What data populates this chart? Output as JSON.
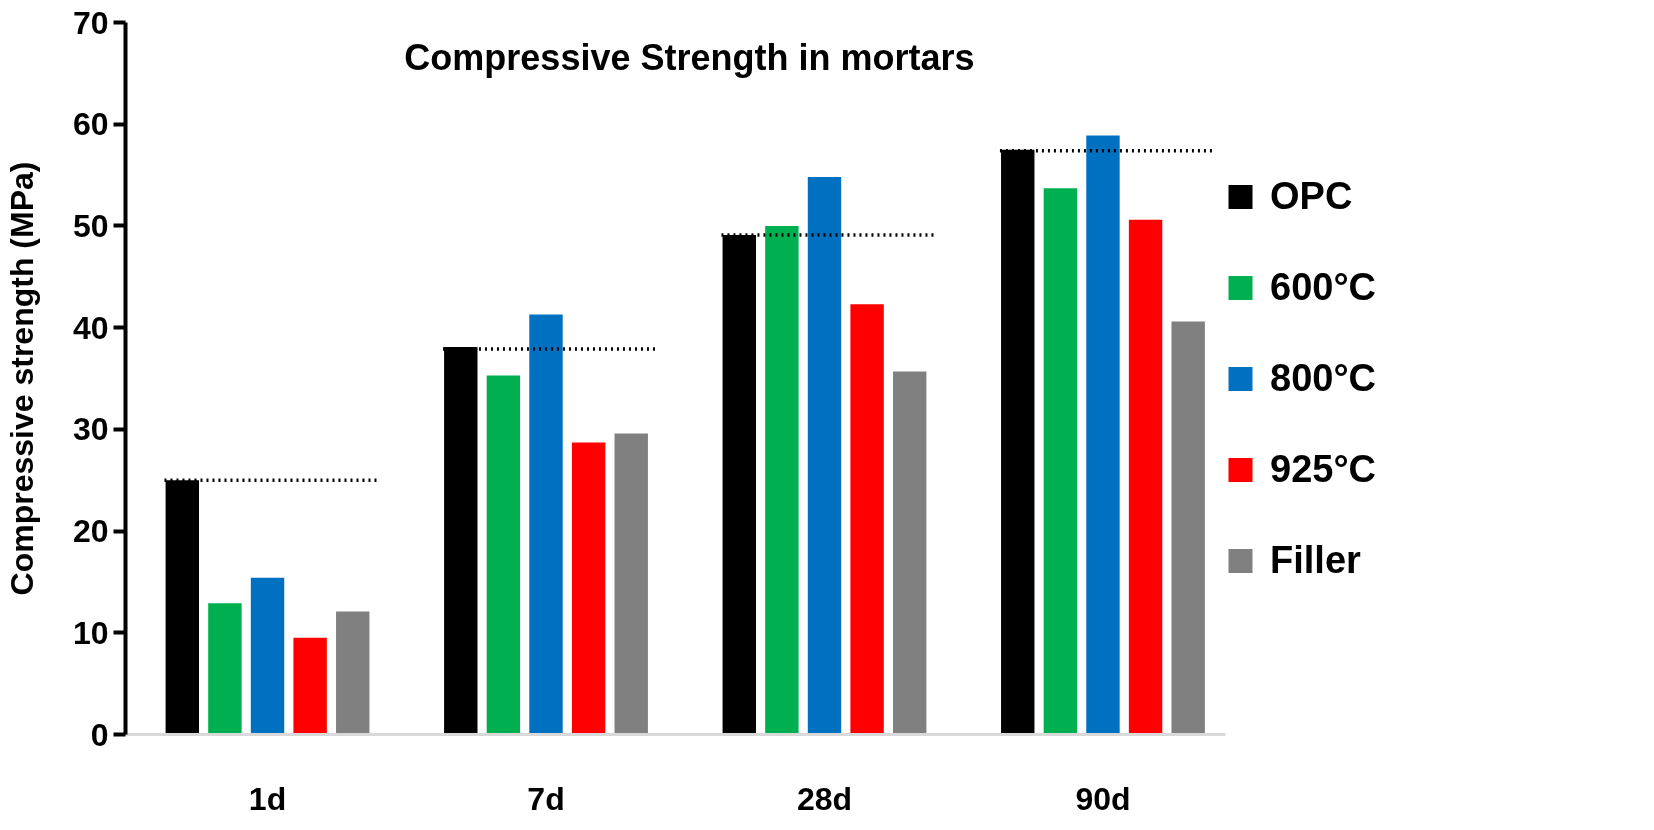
{
  "chart_data": {
    "type": "bar",
    "title": "Compressive Strength in mortars",
    "ylabel": "Compressive strength (MPa)",
    "categories": [
      "1d",
      "7d",
      "28d",
      "90d"
    ],
    "ylim": [
      0,
      70
    ],
    "yticks": [
      0,
      10,
      20,
      30,
      40,
      50,
      60,
      70
    ],
    "grid": false,
    "legend": "right",
    "series": [
      {
        "name": "OPC",
        "color": "#000000",
        "values": [
          25.0,
          38.1,
          49.1,
          57.5
        ]
      },
      {
        "name": "600°C",
        "color": "#00b050",
        "values": [
          12.9,
          35.3,
          50.0,
          53.7
        ]
      },
      {
        "name": "800°C",
        "color": "#0070c0",
        "values": [
          15.4,
          41.3,
          54.8,
          58.9
        ]
      },
      {
        "name": "925°C",
        "color": "#ff0000",
        "values": [
          9.5,
          28.7,
          42.3,
          50.6
        ]
      },
      {
        "name": "Filler",
        "color": "#808080",
        "values": [
          12.1,
          29.6,
          35.7,
          40.6
        ]
      }
    ],
    "ref_lines": [
      {
        "axis": "y",
        "value": 25.0,
        "color": "#000000",
        "line_style": "dotted"
      },
      {
        "axis": "y",
        "value": 37.9,
        "color": "#000000",
        "line_style": "dotted"
      },
      {
        "axis": "y",
        "value": 49.1,
        "color": "#000000",
        "line_style": "dotted"
      },
      {
        "axis": "y",
        "value": 57.4,
        "color": "#000000",
        "line_style": "dotted"
      }
    ]
  }
}
